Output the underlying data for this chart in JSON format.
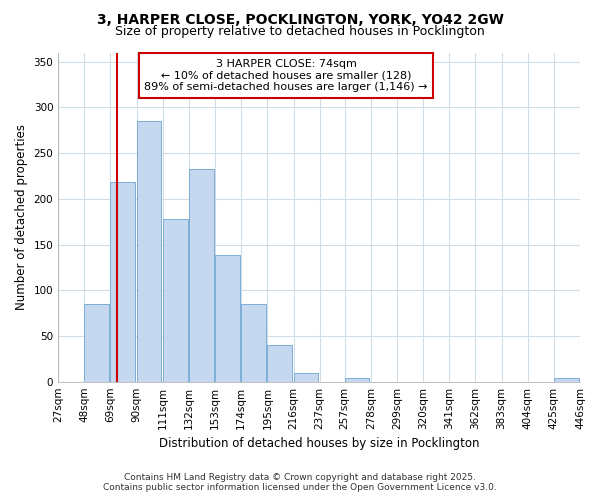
{
  "title_line1": "3, HARPER CLOSE, POCKLINGTON, YORK, YO42 2GW",
  "title_line2": "Size of property relative to detached houses in Pocklington",
  "xlabel": "Distribution of detached houses by size in Pocklington",
  "ylabel": "Number of detached properties",
  "bar_values": [
    0,
    85,
    218,
    285,
    178,
    233,
    138,
    85,
    40,
    10,
    0,
    4,
    0,
    0,
    0,
    0,
    0,
    0,
    0,
    4,
    0
  ],
  "bin_edges": [
    27,
    48,
    69,
    90,
    111,
    132,
    153,
    174,
    195,
    216,
    237,
    257,
    278,
    299,
    320,
    341,
    362,
    383,
    404,
    425,
    446
  ],
  "bin_labels": [
    "27sqm",
    "48sqm",
    "69sqm",
    "90sqm",
    "111sqm",
    "132sqm",
    "153sqm",
    "174sqm",
    "195sqm",
    "216sqm",
    "237sqm",
    "257sqm",
    "278sqm",
    "299sqm",
    "320sqm",
    "341sqm",
    "362sqm",
    "383sqm",
    "404sqm",
    "425sqm",
    "446sqm"
  ],
  "bar_color": "#c5d8f0",
  "bar_edge_color": "#7bafd4",
  "vline_x": 74,
  "annotation_text": "3 HARPER CLOSE: 74sqm\n← 10% of detached houses are smaller (128)\n89% of semi-detached houses are larger (1,146) →",
  "annotation_box_color": "#ffffff",
  "annotation_box_edge": "#cc0000",
  "vline_color": "#cc0000",
  "ylim": [
    0,
    360
  ],
  "yticks": [
    0,
    50,
    100,
    150,
    200,
    250,
    300,
    350
  ],
  "footer_line1": "Contains HM Land Registry data © Crown copyright and database right 2025.",
  "footer_line2": "Contains public sector information licensed under the Open Government Licence v3.0.",
  "bg_color": "#ffffff",
  "plot_bg_color": "#ffffff",
  "grid_color": "#d0dce8"
}
